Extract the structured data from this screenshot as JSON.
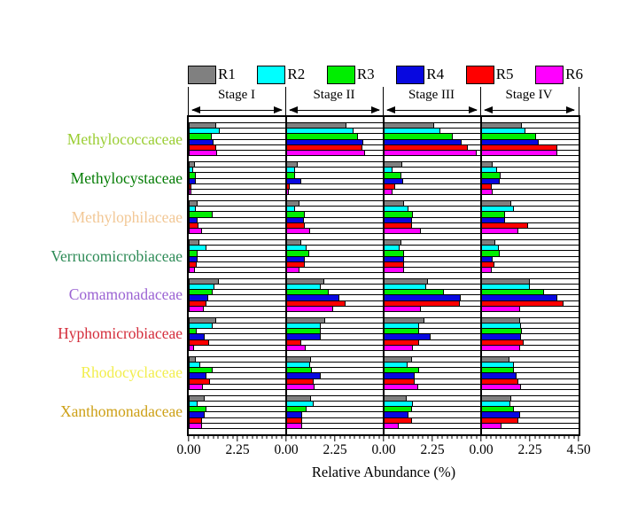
{
  "chart_data": {
    "type": "bar",
    "orientation": "horizontal",
    "title": "",
    "xlabel": "Relative Abundance (%)",
    "unit": "%",
    "grid": "horizontal-rows",
    "legend_position": "top",
    "panel_xlim": [
      0,
      4.5
    ],
    "x_major_tick_values": [
      0,
      2.25,
      4.5
    ],
    "x_tick_labels": {
      "panel": [
        "0.00",
        "2.25"
      ],
      "end": "4.50"
    },
    "minor_tick_step": 0.225,
    "replicates": [
      {
        "name": "R1",
        "color": "#808080"
      },
      {
        "name": "R2",
        "color": "#00ffff"
      },
      {
        "name": "R3",
        "color": "#00ee00"
      },
      {
        "name": "R4",
        "color": "#0808e0"
      },
      {
        "name": "R5",
        "color": "#ff0000"
      },
      {
        "name": "R6",
        "color": "#ff00ff"
      }
    ],
    "families": [
      {
        "name": "Methylococcaceae",
        "label_color": "#9acd32"
      },
      {
        "name": "Methylocystaceae",
        "label_color": "#047c04"
      },
      {
        "name": "Methylophilaceae",
        "label_color": "#f2c795"
      },
      {
        "name": "Verrucomicrobiaceae",
        "label_color": "#2e8b57"
      },
      {
        "name": "Comamonadaceae",
        "label_color": "#9b63d3"
      },
      {
        "name": "Hyphomicrobiaceae",
        "label_color": "#d42e3c"
      },
      {
        "name": "Rhodocyclaceae",
        "label_color": "#f2ee4e"
      },
      {
        "name": "Xanthomonadaceae",
        "label_color": "#cda016"
      }
    ],
    "panels": [
      {
        "stage": "Stage I",
        "values": [
          [
            1.25,
            1.45,
            1.05,
            1.15,
            1.25,
            1.3
          ],
          [
            0.3,
            0.2,
            0.33,
            0.33,
            0.12,
            0.12
          ],
          [
            0.4,
            0.33,
            1.1,
            0.4,
            0.45,
            0.63
          ],
          [
            0.5,
            0.8,
            0.42,
            0.42,
            0.35,
            0.3
          ],
          [
            1.4,
            1.2,
            1.1,
            0.9,
            0.8,
            0.7
          ],
          [
            1.25,
            1.1,
            0.35,
            0.75,
            0.95,
            0.25
          ],
          [
            0.33,
            0.55,
            1.1,
            0.8,
            1.0,
            0.65
          ],
          [
            0.75,
            0.42,
            0.8,
            0.75,
            0.63,
            0.63
          ]
        ]
      },
      {
        "stage": "Stage II",
        "values": [
          [
            2.8,
            3.1,
            3.3,
            3.55,
            3.5,
            3.65
          ],
          [
            0.55,
            0.4,
            0.4,
            0.7,
            0.18,
            0.12
          ],
          [
            0.63,
            0.4,
            0.85,
            0.8,
            0.85,
            1.1
          ],
          [
            0.7,
            0.95,
            1.05,
            0.85,
            0.85,
            0.6
          ],
          [
            1.75,
            1.6,
            1.95,
            2.45,
            2.75,
            2.15
          ],
          [
            1.8,
            1.6,
            1.6,
            1.6,
            0.7,
            0.9
          ],
          [
            1.15,
            1.1,
            1.2,
            1.6,
            1.25,
            1.3
          ],
          [
            1.15,
            1.25,
            0.95,
            0.75,
            0.75,
            0.75
          ]
        ]
      },
      {
        "stage": "Stage III",
        "values": [
          [
            2.35,
            2.6,
            3.2,
            3.6,
            3.9,
            4.3
          ],
          [
            0.85,
            0.4,
            0.8,
            0.9,
            0.55,
            0.4
          ],
          [
            0.95,
            1.15,
            1.35,
            1.3,
            1.3,
            1.7
          ],
          [
            0.8,
            0.75,
            0.95,
            0.95,
            0.95,
            0.95
          ],
          [
            2.05,
            1.95,
            2.8,
            3.55,
            3.5,
            1.7
          ],
          [
            1.9,
            1.65,
            1.65,
            2.15,
            1.65,
            1.35
          ],
          [
            1.3,
            1.1,
            1.65,
            1.45,
            1.45,
            1.6
          ],
          [
            1.05,
            1.35,
            1.3,
            1.15,
            1.3,
            0.7
          ]
        ]
      },
      {
        "stage": "Stage IV",
        "values": [
          [
            1.9,
            2.05,
            2.55,
            2.65,
            3.5,
            3.5
          ],
          [
            0.55,
            0.75,
            0.9,
            0.85,
            0.5,
            0.55
          ],
          [
            1.4,
            1.5,
            1.1,
            1.1,
            2.15,
            1.7
          ],
          [
            0.65,
            0.8,
            0.85,
            0.55,
            0.6,
            0.5
          ],
          [
            2.25,
            2.25,
            2.9,
            3.5,
            3.8,
            1.8
          ],
          [
            1.8,
            1.85,
            1.9,
            1.85,
            1.95,
            1.8
          ],
          [
            1.3,
            1.5,
            1.5,
            1.65,
            1.7,
            1.85
          ],
          [
            1.4,
            1.35,
            1.5,
            1.8,
            1.7,
            0.95
          ]
        ]
      }
    ]
  }
}
